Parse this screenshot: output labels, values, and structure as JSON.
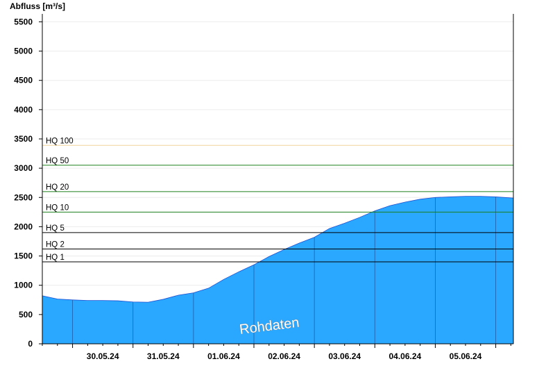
{
  "chart_data": {
    "type": "area",
    "ylabel": "Abfluss [m³/s]",
    "xlabel": "",
    "ylim": [
      0,
      5600
    ],
    "yticks": [
      0,
      500,
      1000,
      1500,
      2000,
      2500,
      3000,
      3500,
      4000,
      4500,
      5000,
      5500
    ],
    "x_start": "29.05.24 12:00",
    "x_end": "06.06.24 07:00",
    "x_tick_labels": [
      "30.05.24",
      "31.05.24",
      "01.06.24",
      "02.06.24",
      "03.06.24",
      "04.06.24",
      "05.06.24"
    ],
    "grid": "horizontal",
    "fill_color": "#2aa7ff",
    "series": [
      {
        "values_note_units": "m³/s",
        "x": [
          "29.05.24 12:00",
          "29.05.24 18:00",
          "30.05.24 00:00",
          "30.05.24 06:00",
          "30.05.24 12:00",
          "30.05.24 18:00",
          "31.05.24 00:00",
          "31.05.24 06:00",
          "31.05.24 12:00",
          "31.05.24 18:00",
          "01.06.24 00:00",
          "01.06.24 06:00",
          "01.06.24 12:00",
          "01.06.24 18:00",
          "02.06.24 00:00",
          "02.06.24 06:00",
          "02.06.24 12:00",
          "02.06.24 18:00",
          "03.06.24 00:00",
          "03.06.24 06:00",
          "03.06.24 12:00",
          "03.06.24 18:00",
          "04.06.24 00:00",
          "04.06.24 06:00",
          "04.06.24 12:00",
          "04.06.24 18:00",
          "05.06.24 00:00",
          "05.06.24 06:00",
          "05.06.24 12:00",
          "05.06.24 18:00",
          "06.06.24 00:00",
          "06.06.24 07:00"
        ],
        "y": [
          820,
          765,
          750,
          740,
          740,
          735,
          715,
          710,
          760,
          830,
          870,
          950,
          1100,
          1230,
          1350,
          1490,
          1610,
          1720,
          1820,
          1970,
          2060,
          2160,
          2270,
          2360,
          2420,
          2470,
          2500,
          2510,
          2520,
          2520,
          2510,
          2490
        ]
      }
    ],
    "thresholds": [
      {
        "label": "HQ 1",
        "value": 1400,
        "color": "#000000"
      },
      {
        "label": "HQ 2",
        "value": 1620,
        "color": "#000000"
      },
      {
        "label": "HQ 5",
        "value": 1900,
        "color": "#000000"
      },
      {
        "label": "HQ 10",
        "value": 2250,
        "color": "#1a7f1a"
      },
      {
        "label": "HQ 20",
        "value": 2600,
        "color": "#1a7f1a"
      },
      {
        "label": "HQ 50",
        "value": 3050,
        "color": "#1a7f1a"
      },
      {
        "label": "HQ 100",
        "value": 3390,
        "color": "#f4d49a"
      }
    ],
    "watermark": "Rohdaten"
  }
}
